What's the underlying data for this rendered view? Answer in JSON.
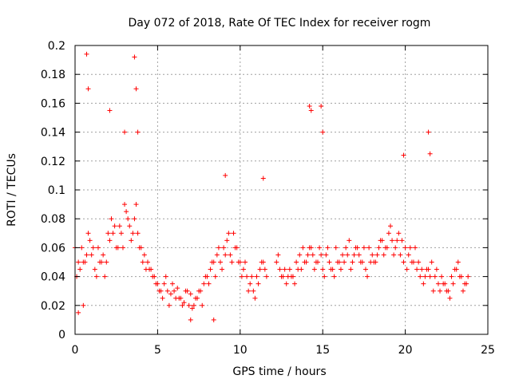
{
  "chart_data": {
    "type": "scatter",
    "title": "Day 072 of 2018, Rate Of TEC Index for receiver rogm",
    "xlabel": "GPS time / hours",
    "ylabel": "ROTI / TECUs",
    "xlim": [
      0,
      25
    ],
    "ylim": [
      0,
      0.2
    ],
    "xticks": [
      0,
      5,
      10,
      15,
      20,
      25
    ],
    "xtick_labels": [
      "0",
      "5",
      "10",
      "15",
      "20",
      "25"
    ],
    "yticks": [
      0,
      0.02,
      0.04,
      0.06,
      0.08,
      0.1,
      0.12,
      0.14,
      0.16,
      0.18,
      0.2
    ],
    "ytick_labels": [
      "0",
      "0.02",
      "0.04",
      "0.06",
      "0.08",
      "0.1",
      "0.12",
      "0.14",
      "0.16",
      "0.18",
      "0.2"
    ],
    "grid": true,
    "marker": "+",
    "color": "#ff0000",
    "series": [
      {
        "name": "ROTI",
        "x": [
          0.0,
          0.2,
          0.4,
          0.6,
          0.8,
          1.0,
          1.2,
          1.4,
          1.6,
          1.8,
          2.0,
          2.2,
          2.4,
          2.6,
          2.8,
          3.0,
          3.2,
          3.4,
          3.6,
          3.8,
          4.0,
          4.2,
          4.4,
          4.6,
          4.8,
          5.0,
          5.2,
          5.4,
          5.6,
          5.8,
          6.0,
          6.2,
          6.4,
          6.6,
          6.8,
          7.0,
          7.2,
          7.4,
          7.6,
          7.8,
          8.0,
          8.2,
          8.4,
          8.6,
          8.8,
          9.0,
          9.2,
          9.4,
          9.6,
          9.8,
          10.0,
          10.2,
          10.4,
          10.6,
          10.8,
          11.0,
          11.2,
          11.4,
          11.6,
          12.2,
          12.4,
          12.6,
          12.8,
          13.0,
          13.2,
          13.4,
          13.6,
          13.8,
          14.0,
          14.2,
          14.4,
          14.6,
          14.8,
          15.0,
          15.2,
          15.4,
          15.6,
          15.8,
          16.0,
          16.2,
          16.4,
          16.6,
          16.8,
          17.0,
          17.2,
          17.4,
          17.6,
          17.8,
          18.0,
          18.2,
          18.4,
          18.6,
          18.8,
          19.0,
          19.2,
          19.4,
          19.6,
          19.8,
          20.0,
          20.2,
          20.4,
          20.6,
          20.8,
          21.0,
          21.2,
          21.4,
          21.6,
          21.8,
          22.0,
          22.2,
          22.4,
          22.6,
          22.8,
          23.0,
          23.2,
          23.4,
          23.6,
          23.8,
          0.1,
          0.3,
          0.5,
          0.7,
          0.9,
          1.1,
          1.3,
          1.5,
          1.7,
          1.9,
          2.1,
          2.3,
          2.5,
          2.7,
          2.9,
          3.1,
          3.3,
          3.5,
          3.7,
          3.9,
          4.1,
          4.3,
          4.5,
          4.7,
          4.9,
          5.1,
          5.3,
          5.5,
          5.7,
          5.9,
          6.1,
          6.3,
          6.5,
          6.7,
          6.9,
          7.1,
          7.3,
          7.5,
          7.7,
          7.9,
          8.1,
          8.3,
          8.5,
          8.7,
          8.9,
          9.1,
          9.3,
          9.5,
          9.7,
          9.9,
          10.1,
          10.3,
          10.5,
          10.7,
          10.9,
          11.1,
          11.3,
          11.5,
          12.3,
          12.5,
          12.7,
          12.9,
          13.1,
          13.3,
          13.5,
          13.7,
          13.9,
          14.1,
          14.3,
          14.5,
          14.7,
          14.9,
          15.1,
          15.3,
          15.5,
          15.7,
          15.9,
          16.1,
          16.3,
          16.5,
          16.7,
          16.9,
          17.1,
          17.3,
          17.5,
          17.7,
          17.9,
          18.1,
          18.3,
          18.5,
          18.7,
          18.9,
          19.1,
          19.3,
          19.5,
          19.7,
          19.9,
          20.1,
          20.3,
          20.5,
          20.7,
          20.9,
          21.1,
          21.3,
          21.5,
          21.7,
          21.9,
          22.1,
          22.3,
          22.5,
          22.7,
          22.9,
          23.1,
          23.3,
          23.5,
          23.7,
          0.7,
          0.8,
          3.6,
          3.7,
          3.8,
          2.1,
          14.2,
          14.3,
          14.9,
          15.0,
          21.4,
          21.5,
          19.9,
          9.1,
          11.4,
          0.2,
          0.5,
          7.0,
          8.4,
          3.0
        ],
        "y": [
          0.06,
          0.05,
          0.06,
          0.05,
          0.07,
          0.055,
          0.045,
          0.06,
          0.05,
          0.04,
          0.07,
          0.08,
          0.075,
          0.06,
          0.07,
          0.09,
          0.08,
          0.065,
          0.08,
          0.07,
          0.06,
          0.055,
          0.05,
          0.045,
          0.04,
          0.035,
          0.03,
          0.035,
          0.03,
          0.028,
          0.03,
          0.032,
          0.025,
          0.022,
          0.03,
          0.028,
          0.02,
          0.025,
          0.03,
          0.035,
          0.04,
          0.045,
          0.05,
          0.055,
          0.05,
          0.06,
          0.065,
          0.055,
          0.07,
          0.06,
          0.05,
          0.045,
          0.04,
          0.035,
          0.03,
          0.04,
          0.045,
          0.05,
          0.04,
          0.05,
          0.045,
          0.04,
          0.035,
          0.045,
          0.04,
          0.05,
          0.055,
          0.06,
          0.05,
          0.06,
          0.055,
          0.05,
          0.06,
          0.045,
          0.055,
          0.05,
          0.045,
          0.06,
          0.05,
          0.055,
          0.06,
          0.065,
          0.05,
          0.06,
          0.055,
          0.05,
          0.045,
          0.06,
          0.055,
          0.05,
          0.06,
          0.065,
          0.06,
          0.07,
          0.065,
          0.06,
          0.07,
          0.065,
          0.06,
          0.055,
          0.05,
          0.06,
          0.05,
          0.045,
          0.04,
          0.045,
          0.05,
          0.04,
          0.035,
          0.04,
          0.035,
          0.03,
          0.04,
          0.045,
          0.05,
          0.04,
          0.035,
          0.04,
          0.04,
          0.045,
          0.05,
          0.055,
          0.065,
          0.06,
          0.04,
          0.05,
          0.055,
          0.05,
          0.065,
          0.07,
          0.06,
          0.075,
          0.06,
          0.085,
          0.075,
          0.07,
          0.09,
          0.06,
          0.05,
          0.045,
          0.045,
          0.04,
          0.035,
          0.03,
          0.025,
          0.04,
          0.02,
          0.035,
          0.025,
          0.025,
          0.02,
          0.03,
          0.02,
          0.018,
          0.025,
          0.03,
          0.02,
          0.04,
          0.035,
          0.05,
          0.04,
          0.06,
          0.045,
          0.055,
          0.07,
          0.05,
          0.06,
          0.05,
          0.04,
          0.05,
          0.03,
          0.04,
          0.025,
          0.035,
          0.05,
          0.045,
          0.055,
          0.04,
          0.045,
          0.04,
          0.04,
          0.035,
          0.045,
          0.045,
          0.05,
          0.055,
          0.06,
          0.045,
          0.05,
          0.055,
          0.04,
          0.06,
          0.045,
          0.04,
          0.05,
          0.045,
          0.05,
          0.055,
          0.045,
          0.055,
          0.06,
          0.05,
          0.06,
          0.04,
          0.05,
          0.05,
          0.055,
          0.065,
          0.055,
          0.06,
          0.075,
          0.055,
          0.065,
          0.055,
          0.05,
          0.045,
          0.06,
          0.05,
          0.045,
          0.04,
          0.035,
          0.045,
          0.04,
          0.03,
          0.045,
          0.03,
          0.035,
          0.03,
          0.025,
          0.035,
          0.045,
          0.04,
          0.03,
          0.035,
          0.194,
          0.17,
          0.192,
          0.17,
          0.14,
          0.155,
          0.158,
          0.155,
          0.158,
          0.14,
          0.14,
          0.125,
          0.124,
          0.11,
          0.108,
          0.015,
          0.02,
          0.01,
          0.01,
          0.14
        ]
      }
    ]
  }
}
